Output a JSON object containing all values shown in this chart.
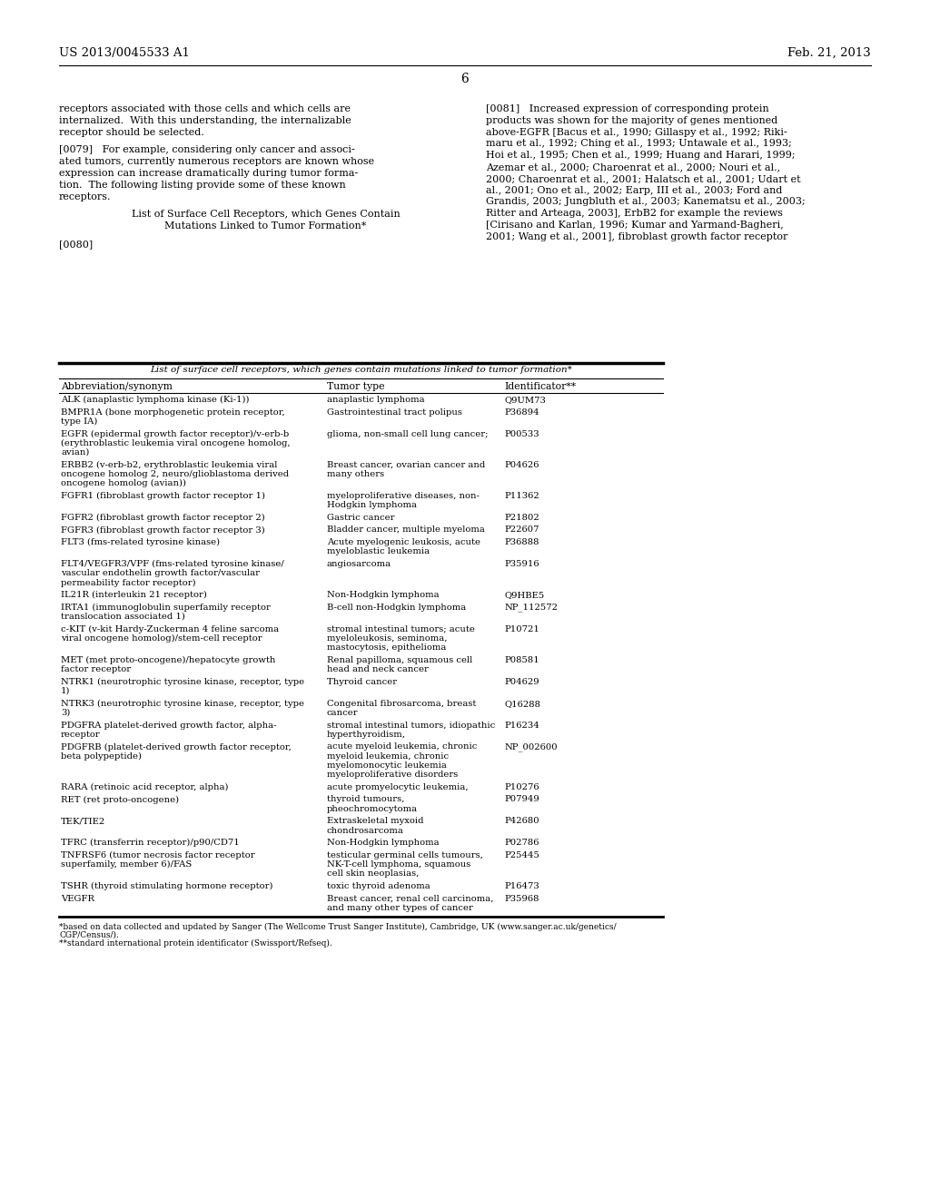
{
  "bg_color": "#ffffff",
  "header_left": "US 2013/0045533 A1",
  "header_right": "Feb. 21, 2013",
  "page_number": "6",
  "left_col_text": [
    "receptors associated with those cells and which cells are",
    "internalized.  With this understanding, the internalizable",
    "receptor should be selected.",
    "",
    "[0079]   For example, considering only cancer and associ-",
    "ated tumors, currently numerous receptors are known whose",
    "expression can increase dramatically during tumor forma-",
    "tion.  The following listing provide some of these known",
    "receptors.",
    "",
    "List of Surface Cell Receptors, which Genes Contain",
    "Mutations Linked to Tumor Formation*",
    "",
    "[0080]"
  ],
  "right_col_text": [
    "[0081]   Increased expression of corresponding protein",
    "products was shown for the majority of genes mentioned",
    "above-EGFR [Bacus et al., 1990; Gillaspy et al., 1992; Riki-",
    "maru et al., 1992; Ching et al., 1993; Untawale et al., 1993;",
    "Hoi et al., 1995; Chen et al., 1999; Huang and Harari, 1999;",
    "Azemar et al., 2000; Charoenrat et al., 2000; Nouri et al.,",
    "2000; Charoenrat et al., 2001; Halatsch et al., 2001; Udart et",
    "al., 2001; Ono et al., 2002; Earp, III et al., 2003; Ford and",
    "Grandis, 2003; Jungbluth et al., 2003; Kanematsu et al., 2003;",
    "Ritter and Arteaga, 2003], ErbB2 for example the reviews",
    "[Cirisano and Karlan, 1996; Kumar and Yarmand-Bagheri,",
    "2001; Wang et al., 2001], fibroblast growth factor receptor"
  ],
  "table_title": "List of surface cell receptors, which genes contain mutations linked to tumor formation*",
  "table_headers": [
    "Abbreviation/synonym",
    "Tumor type",
    "Identificator**"
  ],
  "table_rows": [
    [
      "ALK (anaplastic lymphoma kinase (Ki-1))",
      "anaplastic lymphoma",
      "Q9UM73"
    ],
    [
      "BMPR1A (bone morphogenetic protein receptor,\ntype IA)",
      "Gastrointestinal tract polipus",
      "P36894"
    ],
    [
      "EGFR (epidermal growth factor receptor)/v-erb-b\n(erythroblastic leukemia viral oncogene homolog,\navian)",
      "glioma, non-small cell lung cancer;",
      "P00533"
    ],
    [
      "ERBB2 (v-erb-b2, erythroblastic leukemia viral\noncogene homolog 2, neuro/glioblastoma derived\noncogene homolog (avian))",
      "Breast cancer, ovarian cancer and\nmany others",
      "P04626"
    ],
    [
      "FGFR1 (fibroblast growth factor receptor 1)",
      "myeloproliferative diseases, non-\nHodgkin lymphoma",
      "P11362"
    ],
    [
      "FGFR2 (fibroblast growth factor receptor 2)",
      "Gastric cancer",
      "P21802"
    ],
    [
      "FGFR3 (fibroblast growth factor receptor 3)",
      "Bladder cancer, multiple myeloma",
      "P22607"
    ],
    [
      "FLT3 (fms-related tyrosine kinase)",
      "Acute myelogenic leukosis, acute\nmyeloblastic leukemia",
      "P36888"
    ],
    [
      "FLT4/VEGFR3/VPF (fms-related tyrosine kinase/\nvascular endothelin growth factor/vascular\npermeability factor receptor)",
      "angiosarcoma",
      "P35916"
    ],
    [
      "IL21R (interleukin 21 receptor)",
      "Non-Hodgkin lymphoma",
      "Q9HBE5"
    ],
    [
      "IRTA1 (immunoglobulin superfamily receptor\ntranslocation associated 1)",
      "B-cell non-Hodgkin lymphoma",
      "NP_112572"
    ],
    [
      "c-KIT (v-kit Hardy-Zuckerman 4 feline sarcoma\nviral oncogene homolog)/stem-cell receptor",
      "stromal intestinal tumors; acute\nmyeloleukosis, seminoma,\nmastocytosis, epithelioma",
      "P10721"
    ],
    [
      "MET (met proto-oncogene)/hepatocyte growth\nfactor receptor",
      "Renal papilloma, squamous cell\nhead and neck cancer",
      "P08581"
    ],
    [
      "NTRK1 (neurotrophic tyrosine kinase, receptor, type\n1)",
      "Thyroid cancer",
      "P04629"
    ],
    [
      "NTRK3 (neurotrophic tyrosine kinase, receptor, type\n3)",
      "Congenital fibrosarcoma, breast\ncancer",
      "Q16288"
    ],
    [
      "PDGFRA platelet-derived growth factor, alpha-\nreceptor",
      "stromal intestinal tumors, idiopathic\nhyperthyroidism,",
      "P16234"
    ],
    [
      "PDGFRB (platelet-derived growth factor receptor,\nbeta polypeptide)",
      "acute myeloid leukemia, chronic\nmyeloid leukemia, chronic\nmyelomonocytic leukemia\nmyeloproliferative disorders",
      "NP_002600"
    ],
    [
      "RARA (retinoic acid receptor, alpha)",
      "acute promyelocytic leukemia,",
      "P10276"
    ],
    [
      "RET (ret proto-oncogene)",
      "thyroid tumours,\npheochromocytoma",
      "P07949"
    ],
    [
      "TEK/TIE2",
      "Extraskeletal myxoid\nchondrosarcoma",
      "P42680"
    ],
    [
      "TFRC (transferrin receptor)/p90/CD71",
      "Non-Hodgkin lymphoma",
      "P02786"
    ],
    [
      "TNFRSF6 (tumor necrosis factor receptor\nsuperfamily, member 6)/FAS",
      "testicular germinal cells tumours,\nNK-T-cell lymphoma, squamous\ncell skin neoplasias,",
      "P25445"
    ],
    [
      "TSHR (thyroid stimulating hormone receptor)",
      "toxic thyroid adenoma",
      "P16473"
    ],
    [
      "VEGFR",
      "Breast cancer, renal cell carcinoma,\nand many other types of cancer",
      "P35968"
    ]
  ],
  "footnote1": "*based on data collected and updated by Sanger (The Wellcome Trust Sanger Institute), Cambridge, UK (www.sanger.ac.uk/genetics/",
  "footnote2": "CGP/Census/).",
  "footnote3": "**standard international protein identificator (Swissport/Refseq).",
  "left_title_centered": true
}
